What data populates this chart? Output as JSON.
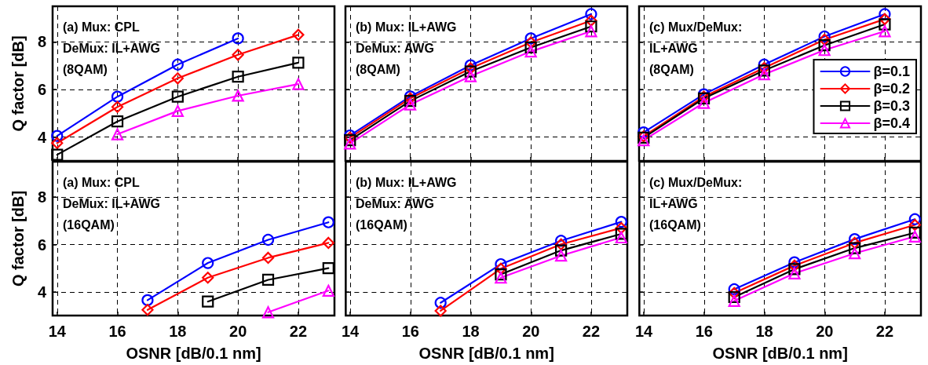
{
  "chart_data": [
    {
      "type": "line",
      "annotations": [
        "(a) Mux: CPL\nDeMux: IL+AWG\n(8QAM)"
      ],
      "ylabel": "Q factor [dB]",
      "x": [
        14,
        16,
        18,
        20,
        22
      ],
      "xlim": [
        13.85,
        23.2
      ],
      "xticks": [
        14,
        16,
        18,
        20,
        22
      ],
      "ylim": [
        3,
        9.5
      ],
      "yticks": [
        4,
        6,
        8
      ],
      "grid": true,
      "legend": false,
      "tick_labels": "y",
      "series": [
        {
          "color": "#0000ff",
          "marker": "circle",
          "values": [
            4.05,
            5.7,
            7.05,
            8.15,
            null
          ]
        },
        {
          "color": "#ff0000",
          "marker": "diamond",
          "values": [
            3.75,
            5.27,
            6.47,
            7.46,
            8.3
          ]
        },
        {
          "color": "#000000",
          "marker": "square",
          "values": [
            3.26,
            4.66,
            5.7,
            6.54,
            7.13
          ]
        },
        {
          "color": "#ff00ff",
          "marker": "triangle",
          "values": [
            null,
            4.12,
            5.1,
            5.74,
            6.23
          ]
        }
      ]
    },
    {
      "type": "line",
      "annotations": [
        "(b) Mux: IL+AWG\nDeMux: AWG\n(8QAM)"
      ],
      "x": [
        14,
        16,
        18,
        20,
        22
      ],
      "xlim": [
        13.85,
        23.2
      ],
      "xticks": [
        14,
        16,
        18,
        20,
        22
      ],
      "ylim": [
        3,
        9.5
      ],
      "yticks": [
        4,
        6,
        8
      ],
      "grid": true,
      "legend": false,
      "tick_labels": false,
      "series": [
        {
          "color": "#0000ff",
          "marker": "circle",
          "values": [
            4.07,
            5.71,
            7.02,
            8.15,
            9.17
          ]
        },
        {
          "color": "#ff0000",
          "marker": "diamond",
          "values": [
            3.98,
            5.63,
            6.89,
            7.98,
            8.9
          ]
        },
        {
          "color": "#000000",
          "marker": "square",
          "values": [
            3.87,
            5.52,
            6.76,
            7.77,
            8.65
          ]
        },
        {
          "color": "#ff00ff",
          "marker": "triangle",
          "values": [
            3.73,
            5.37,
            6.56,
            7.6,
            8.45
          ]
        }
      ]
    },
    {
      "type": "line",
      "annotations": [
        "(c) Mux/DeMux:\nIL+AWG\n(8QAM)"
      ],
      "x": [
        14,
        16,
        18,
        20,
        22
      ],
      "xlim": [
        13.85,
        23.2
      ],
      "xticks": [
        14,
        16,
        18,
        20,
        22
      ],
      "ylim": [
        3,
        9.5
      ],
      "yticks": [
        4,
        6,
        8
      ],
      "grid": true,
      "legend": "right",
      "tick_labels": false,
      "series": [
        {
          "name": "β=0.1",
          "color": "#0000ff",
          "marker": "circle",
          "values": [
            4.2,
            5.8,
            7.05,
            8.23,
            9.17
          ]
        },
        {
          "name": "β=0.2",
          "color": "#ff0000",
          "marker": "diamond",
          "values": [
            4.03,
            5.7,
            6.91,
            8.1,
            8.96
          ]
        },
        {
          "name": "β=0.3",
          "color": "#000000",
          "marker": "square",
          "values": [
            3.98,
            5.63,
            6.8,
            7.86,
            8.74
          ]
        },
        {
          "name": "β=0.4",
          "color": "#ff00ff",
          "marker": "triangle",
          "values": [
            3.87,
            5.44,
            6.64,
            7.66,
            8.45
          ]
        }
      ]
    },
    {
      "type": "line",
      "annotations": [
        "(a) Mux: CPL\nDeMux: IL+AWG\n(16QAM)"
      ],
      "ylabel": "Q factor [dB]",
      "xlabel": "OSNR [dB/0.1 nm]",
      "x": [
        17,
        19,
        21,
        23
      ],
      "xlim": [
        13.85,
        23.2
      ],
      "xticks": [
        14,
        16,
        18,
        20,
        22
      ],
      "ylim": [
        3,
        9.5
      ],
      "yticks": [
        4,
        6,
        8
      ],
      "grid": true,
      "legend": false,
      "series": [
        {
          "color": "#0000ff",
          "marker": "circle",
          "values": [
            3.65,
            5.22,
            6.2,
            6.94
          ]
        },
        {
          "color": "#ff0000",
          "marker": "diamond",
          "values": [
            3.24,
            4.6,
            5.44,
            6.07
          ]
        },
        {
          "color": "#000000",
          "marker": "square",
          "values": [
            null,
            3.59,
            4.51,
            5.0
          ]
        },
        {
          "color": "#ff00ff",
          "marker": "triangle",
          "values": [
            null,
            null,
            3.14,
            4.05
          ]
        }
      ]
    },
    {
      "type": "line",
      "annotations": [
        "(b) Mux: IL+AWG\nDeMux: AWG\n(16QAM)"
      ],
      "xlabel": "OSNR [dB/0.1 nm]",
      "x": [
        17,
        19,
        21,
        23
      ],
      "xlim": [
        13.85,
        23.2
      ],
      "xticks": [
        14,
        16,
        18,
        20,
        22
      ],
      "ylim": [
        3,
        9.5
      ],
      "yticks": [
        4,
        6,
        8
      ],
      "grid": true,
      "legend": false,
      "tick_labels": "x",
      "series": [
        {
          "color": "#0000ff",
          "marker": "circle",
          "values": [
            3.54,
            5.17,
            6.16,
            6.96
          ]
        },
        {
          "color": "#ff0000",
          "marker": "diamond",
          "values": [
            3.2,
            4.98,
            6.01,
            6.7
          ]
        },
        {
          "color": "#000000",
          "marker": "square",
          "values": [
            null,
            4.74,
            5.75,
            6.45
          ]
        },
        {
          "color": "#ff00ff",
          "marker": "triangle",
          "values": [
            null,
            4.6,
            5.53,
            6.3
          ]
        }
      ]
    },
    {
      "type": "line",
      "annotations": [
        "(c) Mux/DeMux:\nIL+AWG\n(16QAM)"
      ],
      "xlabel": "OSNR [dB/0.1 nm]",
      "x": [
        17,
        19,
        21,
        23
      ],
      "xlim": [
        13.85,
        23.2
      ],
      "xticks": [
        14,
        16,
        18,
        20,
        22
      ],
      "ylim": [
        3,
        9.5
      ],
      "yticks": [
        4,
        6,
        8
      ],
      "grid": true,
      "legend": false,
      "tick_labels": "x",
      "series": [
        {
          "color": "#0000ff",
          "marker": "circle",
          "values": [
            4.11,
            5.25,
            6.23,
            7.07
          ]
        },
        {
          "color": "#ff0000",
          "marker": "diamond",
          "values": [
            3.95,
            5.11,
            6.07,
            6.83
          ]
        },
        {
          "color": "#000000",
          "marker": "square",
          "values": [
            3.78,
            4.96,
            5.85,
            6.5
          ]
        },
        {
          "color": "#ff00ff",
          "marker": "triangle",
          "values": [
            3.62,
            4.78,
            5.63,
            6.34
          ]
        }
      ]
    }
  ]
}
